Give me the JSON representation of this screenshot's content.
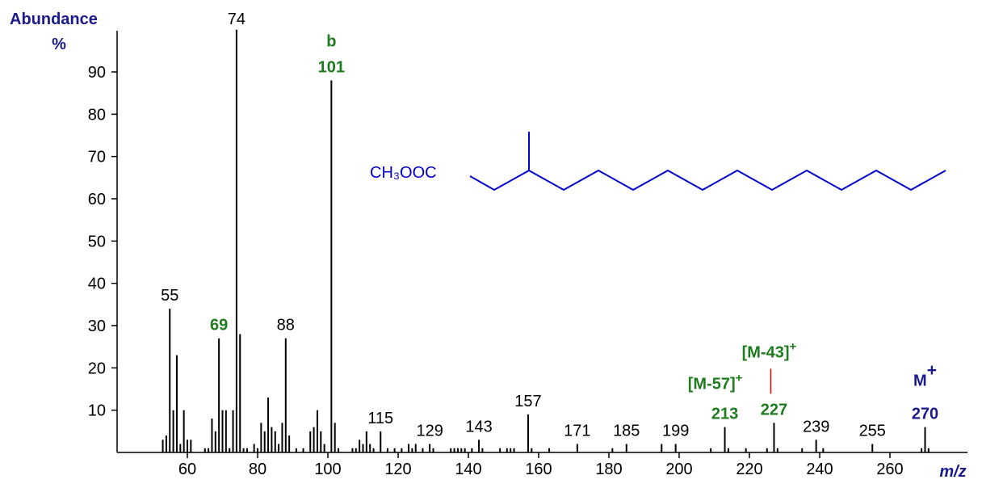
{
  "chart_data": {
    "type": "bar",
    "y_label": "Abundance",
    "y_unit": "%",
    "x_label": "m/z",
    "xlim": [
      40,
      280
    ],
    "xticks": [
      60,
      80,
      100,
      120,
      140,
      160,
      180,
      200,
      220,
      240,
      260
    ],
    "ylim": [
      0,
      100
    ],
    "yticks": [
      10,
      20,
      30,
      40,
      50,
      60,
      70,
      80,
      90
    ],
    "color": "#000000",
    "x": [
      53,
      54,
      55,
      56,
      57,
      58,
      59,
      60,
      61,
      65,
      66,
      67,
      68,
      69,
      70,
      71,
      72,
      73,
      74,
      75,
      76,
      77,
      79,
      80,
      81,
      82,
      83,
      84,
      85,
      86,
      87,
      88,
      89,
      91,
      93,
      95,
      96,
      97,
      98,
      99,
      101,
      102,
      103,
      107,
      108,
      109,
      110,
      111,
      112,
      113,
      115,
      117,
      119,
      121,
      123,
      124,
      125,
      127,
      129,
      130,
      135,
      136,
      137,
      138,
      139,
      141,
      143,
      144,
      149,
      151,
      152,
      153,
      157,
      158,
      163,
      171,
      181,
      185,
      195,
      199,
      209,
      213,
      214,
      219,
      225,
      227,
      228,
      235,
      239,
      241,
      255,
      269,
      270,
      271
    ],
    "values": [
      3,
      4,
      34,
      10,
      23,
      2,
      10,
      3,
      3,
      1,
      1,
      8,
      5,
      27,
      10,
      10,
      1,
      10,
      100,
      28,
      1,
      1,
      2,
      1,
      7,
      5,
      13,
      6,
      5,
      2,
      7,
      27,
      4,
      1,
      1,
      5,
      6,
      10,
      5,
      2,
      88,
      7,
      1,
      1,
      1,
      3,
      2,
      5,
      2,
      1,
      5,
      1,
      1,
      1,
      2,
      1,
      2,
      1,
      2,
      1,
      1,
      1,
      1,
      1,
      1,
      1,
      3,
      1,
      1,
      1,
      1,
      1,
      9,
      1,
      1,
      2,
      1,
      2,
      2,
      2,
      1,
      6,
      1,
      1,
      1,
      7,
      1,
      1,
      3,
      1,
      2,
      1,
      6,
      1
    ],
    "peak_labels": [
      {
        "value": 55,
        "color": "#000000"
      },
      {
        "value": 69,
        "color": "#1e7b1e"
      },
      {
        "value": 74,
        "color": "#000000"
      },
      {
        "value": 88,
        "color": "#000000"
      },
      {
        "value": 101,
        "color": "#1e7b1e"
      },
      {
        "value": 115,
        "color": "#000000"
      },
      {
        "value": 129,
        "color": "#000000"
      },
      {
        "value": 143,
        "color": "#000000"
      },
      {
        "value": 157,
        "color": "#000000"
      },
      {
        "value": 171,
        "color": "#000000"
      },
      {
        "value": 185,
        "color": "#000000"
      },
      {
        "value": 199,
        "color": "#000000"
      },
      {
        "value": 213,
        "color": "#1e7b1e"
      },
      {
        "value": 227,
        "color": "#1e7b1e"
      },
      {
        "value": 239,
        "color": "#000000"
      },
      {
        "value": 255,
        "color": "#000000"
      },
      {
        "value": 270,
        "color": "#1a1a8c"
      }
    ],
    "annotations": [
      {
        "text": "b",
        "color": "#1e7b1e"
      },
      {
        "text": "[M-57]",
        "sup": "+",
        "color": "#1e7b1e"
      },
      {
        "text": "[M-43]",
        "sup": "+",
        "color": "#1e7b1e"
      },
      {
        "text": "M",
        "sup": "+",
        "color": "#1a1a8c"
      }
    ],
    "structure_label": "CH₃OOC"
  }
}
